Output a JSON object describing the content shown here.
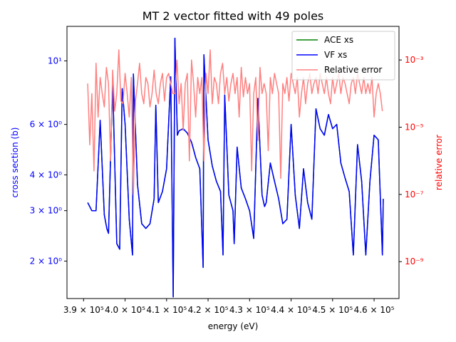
{
  "chart_data": {
    "type": "line",
    "title": "MT 2 vector fitted with 49 poles",
    "xlabel": "energy (eV)",
    "ylabel_left": "cross section (b)",
    "ylabel_right": "relative error",
    "x_range": [
      386000,
      466000
    ],
    "y_left_range": [
      1.48,
      13.2
    ],
    "y_left_scale": "log",
    "y_right_range": [
      8e-11,
      0.01
    ],
    "y_right_scale": "log",
    "x_ticks": [
      {
        "value": 390000,
        "label": "3.9 × 10⁵"
      },
      {
        "value": 400000,
        "label": "4.0 × 10⁵"
      },
      {
        "value": 410000,
        "label": "4.1 × 10⁵"
      },
      {
        "value": 420000,
        "label": "4.2 × 10⁵"
      },
      {
        "value": 430000,
        "label": "4.3 × 10⁵"
      },
      {
        "value": 440000,
        "label": "4.4 × 10⁵"
      },
      {
        "value": 450000,
        "label": "4.5 × 10⁵"
      },
      {
        "value": 460000,
        "label": "4.6 × 10⁵"
      }
    ],
    "y_left_ticks": [
      {
        "value": 2,
        "label": "2 × 10⁰"
      },
      {
        "value": 3,
        "label": "3 × 10⁰"
      },
      {
        "value": 4,
        "label": "4 × 10⁰"
      },
      {
        "value": 6,
        "label": "6 × 10⁰"
      },
      {
        "value": 10,
        "label": "10¹"
      }
    ],
    "y_right_ticks": [
      {
        "value": 1e-09,
        "label": "10⁻⁹"
      },
      {
        "value": 1e-07,
        "label": "10⁻⁷"
      },
      {
        "value": 1e-05,
        "label": "10⁻⁵"
      },
      {
        "value": 0.001,
        "label": "10⁻³"
      }
    ],
    "legend_position": "top-right",
    "series": [
      {
        "name": "ACE xs",
        "axis": "left",
        "color": "#008000",
        "x": [
          391000,
          392000,
          393000,
          394000,
          395000,
          395600,
          396000,
          397000,
          398000,
          398700,
          399300,
          400000,
          401000,
          401800,
          402000,
          403000,
          404000,
          405000,
          406000,
          407000,
          407400,
          408000,
          409000,
          410000,
          411000,
          411600,
          412000,
          412600,
          413000,
          414000,
          415000,
          416000,
          416500,
          417000,
          418000,
          418800,
          419000,
          420000,
          421000,
          422000,
          423000,
          423600,
          424000,
          425000,
          426000,
          426300,
          427000,
          428000,
          429000,
          430000,
          431000,
          432000,
          433000,
          433600,
          434000,
          435000,
          436000,
          437000,
          438000,
          439000,
          440000,
          441000,
          442000,
          443000,
          444000,
          445000,
          446000,
          447000,
          448000,
          449000,
          450000,
          451000,
          452000,
          453000,
          454000,
          455000,
          456000,
          457000,
          458000,
          459000,
          460000,
          461000,
          462000,
          462200
        ],
        "y": [
          3.2,
          3.0,
          3.0,
          6.2,
          2.9,
          2.6,
          2.5,
          8.5,
          2.3,
          2.2,
          8.0,
          6.0,
          2.8,
          2.1,
          9.0,
          3.7,
          2.7,
          2.6,
          2.7,
          3.3,
          7.0,
          3.2,
          3.5,
          4.2,
          8.8,
          1.5,
          12.0,
          5.5,
          5.7,
          5.8,
          5.6,
          5.2,
          4.9,
          4.6,
          4.2,
          1.9,
          10.5,
          5.3,
          4.3,
          3.8,
          3.5,
          2.1,
          7.6,
          3.4,
          3.0,
          2.3,
          5.0,
          3.6,
          3.3,
          3.0,
          2.4,
          7.4,
          3.4,
          3.1,
          3.2,
          4.4,
          3.8,
          3.3,
          2.7,
          2.8,
          6.0,
          3.4,
          2.6,
          4.2,
          3.2,
          2.8,
          6.8,
          5.8,
          5.5,
          6.5,
          5.8,
          6.0,
          4.4,
          3.9,
          3.5,
          2.1,
          5.1,
          3.8,
          2.1,
          3.8,
          5.5,
          5.3,
          2.1,
          3.3
        ],
        "note_style": "hidden beneath VF xs"
      },
      {
        "name": "VF xs",
        "axis": "left",
        "color": "#0000ff",
        "x": [
          391000,
          392000,
          393000,
          394000,
          395000,
          395600,
          396000,
          397000,
          398000,
          398700,
          399300,
          400000,
          401000,
          401800,
          402000,
          403000,
          404000,
          405000,
          406000,
          407000,
          407400,
          408000,
          409000,
          410000,
          411000,
          411600,
          412000,
          412600,
          413000,
          414000,
          415000,
          416000,
          416500,
          417000,
          418000,
          418800,
          419000,
          420000,
          421000,
          422000,
          423000,
          423600,
          424000,
          425000,
          426000,
          426300,
          427000,
          428000,
          429000,
          430000,
          431000,
          432000,
          433000,
          433600,
          434000,
          435000,
          436000,
          437000,
          438000,
          439000,
          440000,
          441000,
          442000,
          443000,
          444000,
          445000,
          446000,
          447000,
          448000,
          449000,
          450000,
          451000,
          452000,
          453000,
          454000,
          455000,
          456000,
          457000,
          458000,
          459000,
          460000,
          461000,
          462000,
          462200
        ],
        "y": [
          3.2,
          3.0,
          3.0,
          6.2,
          2.9,
          2.6,
          2.5,
          8.5,
          2.3,
          2.2,
          8.0,
          6.0,
          2.8,
          2.1,
          9.0,
          3.7,
          2.7,
          2.6,
          2.7,
          3.3,
          7.0,
          3.2,
          3.5,
          4.2,
          8.8,
          1.5,
          12.0,
          5.5,
          5.7,
          5.8,
          5.6,
          5.2,
          4.9,
          4.6,
          4.2,
          1.9,
          10.5,
          5.3,
          4.3,
          3.8,
          3.5,
          2.1,
          7.6,
          3.4,
          3.0,
          2.3,
          5.0,
          3.6,
          3.3,
          3.0,
          2.4,
          7.4,
          3.4,
          3.1,
          3.2,
          4.4,
          3.8,
          3.3,
          2.7,
          2.8,
          6.0,
          3.4,
          2.6,
          4.2,
          3.2,
          2.8,
          6.8,
          5.8,
          5.5,
          6.5,
          5.8,
          6.0,
          4.4,
          3.9,
          3.5,
          2.1,
          5.1,
          3.8,
          2.1,
          3.8,
          5.5,
          5.3,
          2.1,
          3.3
        ]
      },
      {
        "name": "Relative error",
        "axis": "right",
        "color": "#ff8080",
        "x": [
          391000,
          391500,
          392000,
          392500,
          393000,
          393500,
          394000,
          394500,
          395000,
          395500,
          396000,
          396500,
          397000,
          397500,
          398000,
          398500,
          399000,
          399500,
          400000,
          400500,
          401000,
          401500,
          402000,
          402500,
          403000,
          403500,
          404000,
          404500,
          405000,
          405500,
          406000,
          406500,
          407000,
          407500,
          408000,
          408500,
          409000,
          409500,
          410000,
          410500,
          411000,
          411500,
          412000,
          412500,
          413000,
          413500,
          414000,
          414500,
          415000,
          415500,
          416000,
          416500,
          417000,
          417500,
          418000,
          418500,
          419000,
          419500,
          420000,
          420500,
          421000,
          421500,
          422000,
          422500,
          423000,
          423500,
          424000,
          424500,
          425000,
          425500,
          426000,
          426500,
          427000,
          427500,
          428000,
          428500,
          429000,
          429500,
          430000,
          430500,
          431000,
          431500,
          432000,
          432500,
          433000,
          433500,
          434000,
          434500,
          435000,
          435500,
          436000,
          436500,
          437000,
          437500,
          438000,
          438500,
          439000,
          439500,
          440000,
          440500,
          441000,
          441500,
          442000,
          442500,
          443000,
          443500,
          444000,
          444500,
          445000,
          445500,
          446000,
          446500,
          447000,
          447500,
          448000,
          448500,
          449000,
          449500,
          450000,
          450500,
          451000,
          451500,
          452000,
          452500,
          453000,
          453500,
          454000,
          454500,
          455000,
          455500,
          456000,
          456500,
          457000,
          457500,
          458000,
          458500,
          459000,
          459500,
          460000,
          460500,
          461000,
          461500,
          462000
        ],
        "y": [
          0.0002,
          3e-06,
          0.0001,
          5e-07,
          0.0008,
          2e-05,
          0.0003,
          0.0001,
          4e-05,
          0.0006,
          0.0002,
          1e-06,
          0.0005,
          3e-05,
          0.0001,
          0.002,
          6e-05,
          5e-05,
          0.0004,
          0.0001,
          2e-05,
          0.0003,
          1e-07,
          6e-05,
          0.0002,
          0.0008,
          0.0001,
          5e-05,
          0.0003,
          0.0002,
          4e-05,
          0.0001,
          0.0005,
          0.0001,
          5e-05,
          0.0002,
          0.0004,
          6e-05,
          0.0003,
          0.0004,
          0.0002,
          0.0001,
          0.0001,
          0.001,
          5e-05,
          0.0002,
          8e-06,
          0.0002,
          0.0004,
          1e-06,
          0.001,
          0.0002,
          2e-05,
          0.0003,
          0.0001,
          0.0003,
          1e-06,
          0.0004,
          0.0001,
          0.002,
          5e-05,
          0.0003,
          0.0002,
          5e-05,
          0.0004,
          0.0008,
          0.0001,
          0.0003,
          6e-05,
          0.0002,
          0.0004,
          0.0001,
          0.0003,
          2e-05,
          0.0006,
          8e-05,
          0.0003,
          0.0001,
          0.0002,
          5e-07,
          0.0001,
          0.0003,
          4e-06,
          0.0006,
          0.0001,
          0.0002,
          0.0001,
          2e-06,
          0.0003,
          0.0001,
          0.0004,
          0.0002,
          0.0001,
          3e-07,
          0.0002,
          0.0001,
          0.0003,
          6e-05,
          0.0004,
          0.0002,
          0.0001,
          0.0003,
          2e-05,
          0.0001,
          0.0003,
          5e-05,
          0.0002,
          0.0004,
          0.0001,
          0.0002,
          0.0003,
          0.0001,
          0.0004,
          0.0002,
          0.0001,
          0.0003,
          0.0001,
          5e-05,
          0.0003,
          0.0001,
          0.0002,
          0.0004,
          0.0001,
          0.0003,
          0.0002,
          0.0001,
          5e-05,
          0.0002,
          0.0003,
          0.0001,
          0.0004,
          0.0002,
          0.0001,
          0.0003,
          0.0001,
          0.0002,
          0.0001,
          0.0003,
          2e-05,
          0.0001,
          0.0002,
          0.0001,
          3e-05
        ]
      }
    ]
  }
}
